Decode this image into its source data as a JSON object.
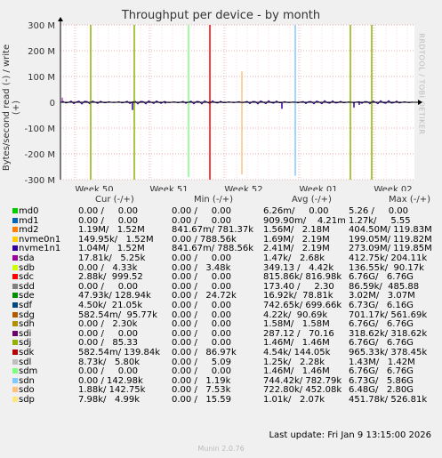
{
  "title": "Throughput per device - by month",
  "ylabel": "Bytes/second read (-) / write (+)",
  "watermark": "RRDTOOL / TOBI OETIKER",
  "chart_data": {
    "type": "line",
    "ylim": [
      -300,
      300
    ],
    "y_ticks": [
      "300 M",
      "200 M",
      "100 M",
      "0",
      "-100 M",
      "-200 M",
      "-300 M"
    ],
    "x_ticks": [
      "Week 50",
      "Week 51",
      "Week 52",
      "Week 01",
      "Week 02"
    ],
    "grid": true
  },
  "legend_header": {
    "cur": "Cur (-/+)",
    "min": "Min (-/+)",
    "avg": "Avg (-/+)",
    "max": "Max (-/+)"
  },
  "devices": [
    {
      "name": "md0",
      "color": "#00CC00",
      "cur": "0.00 /     0.00",
      "min": "0.00 /     0.00",
      "avg": "6.26m/     0.00",
      "max": "5.26 /     0.00"
    },
    {
      "name": "md1",
      "color": "#0066B3",
      "cur": "0.00 /     0.00",
      "min": "0.00 /     0.00",
      "avg": "909.90m/    4.21m",
      "max": "1.27k/     5.55"
    },
    {
      "name": "md2",
      "color": "#FF8000",
      "cur": "1.19M/   1.52M",
      "min": "841.67m/ 781.37k",
      "avg": "1.56M/   2.18M",
      "max": "404.50M/ 119.83M"
    },
    {
      "name": "nvme0n1",
      "color": "#FFCC00",
      "cur": "149.95k/   1.52M",
      "min": "0.00 / 788.56k",
      "avg": "1.69M/   2.19M",
      "max": "199.05M/ 119.82M"
    },
    {
      "name": "nvme1n1",
      "color": "#330099",
      "cur": "1.04M/   1.52M",
      "min": "841.67m/ 788.56k",
      "avg": "2.41M/   2.19M",
      "max": "273.09M/ 119.85M"
    },
    {
      "name": "sda",
      "color": "#990099",
      "cur": "17.81k/   5.25k",
      "min": "0.00 /     0.00",
      "avg": "1.47k/   2.68k",
      "max": "412.75k/ 204.11k"
    },
    {
      "name": "sdb",
      "color": "#CCFF00",
      "cur": "0.00 /   4.33k",
      "min": "0.00 /   3.48k",
      "avg": "349.13 /   4.42k",
      "max": "136.55k/  90.17k"
    },
    {
      "name": "sdc",
      "color": "#FF0000",
      "cur": "2.88k/  999.52",
      "min": "0.00 /     0.00",
      "avg": "815.86k/ 816.98k",
      "max": "6.76G/   6.76G"
    },
    {
      "name": "sdd",
      "color": "#808080",
      "cur": "0.00 /     0.00",
      "min": "0.00 /     0.00",
      "avg": "173.40 /     2.30",
      "max": "86.59k/  485.88"
    },
    {
      "name": "sde",
      "color": "#008F00",
      "cur": "47.93k/ 128.94k",
      "min": "0.00 /   24.72k",
      "avg": "16.92k/  78.81k",
      "max": "3.02M/   3.07M"
    },
    {
      "name": "sdf",
      "color": "#00487D",
      "cur": "4.50k/  21.05k",
      "min": "0.00 /     0.00",
      "avg": "742.65k/ 699.66k",
      "max": "6.73G/   6.16G"
    },
    {
      "name": "sdg",
      "color": "#B35A00",
      "cur": "582.54m/  95.77k",
      "min": "0.00 /     0.00",
      "avg": "4.22k/  90.69k",
      "max": "701.17k/ 561.69k"
    },
    {
      "name": "sdh",
      "color": "#B38F00",
      "cur": "0.00 /   2.30k",
      "min": "0.00 /     0.00",
      "avg": "1.58M/   1.58M",
      "max": "6.76G/   6.76G"
    },
    {
      "name": "sdi",
      "color": "#6B006B",
      "cur": "0.00 /     0.00",
      "min": "0.00 /     0.00",
      "avg": "287.12 /   70.16",
      "max": "318.62k/ 318.62k"
    },
    {
      "name": "sdj",
      "color": "#8FB300",
      "cur": "0.00 /   85.33",
      "min": "0.00 /     0.00",
      "avg": "1.46M/   1.46M",
      "max": "6.76G/   6.76G"
    },
    {
      "name": "sdk",
      "color": "#B30000",
      "cur": "582.54m/ 139.84k",
      "min": "0.00 /   86.97k",
      "avg": "4.54k/ 144.05k",
      "max": "965.33k/ 378.45k"
    },
    {
      "name": "sdl",
      "color": "#BEBEBE",
      "cur": "8.73k/   5.80k",
      "min": "0.00 /     5.09",
      "avg": "1.25k/   2.28k",
      "max": "1.43M/   1.42M"
    },
    {
      "name": "sdm",
      "color": "#80FF80",
      "cur": "0.00 /     0.00",
      "min": "0.00 /     0.00",
      "avg": "1.46M/   1.46M",
      "max": "6.76G/   6.76G"
    },
    {
      "name": "sdn",
      "color": "#80C9FF",
      "cur": "0.00 / 142.98k",
      "min": "0.00 /   1.19k",
      "avg": "744.42k/ 782.79k",
      "max": "6.73G/   5.86G"
    },
    {
      "name": "sdo",
      "color": "#FFC080",
      "cur": "1.88k/ 142.75k",
      "min": "0.00 /   7.53k",
      "avg": "722.80k/ 452.08k",
      "max": "6.48G/   2.80G"
    },
    {
      "name": "sdp",
      "color": "#FFE680",
      "cur": "7.98k/   4.99k",
      "min": "0.00 /   15.59",
      "avg": "1.01k/   2.07k",
      "max": "451.78k/ 526.81k"
    }
  ],
  "last_update": "Last update: Fri Jan  9 13:15:00 2026",
  "munin": "Munin 2.0.76"
}
